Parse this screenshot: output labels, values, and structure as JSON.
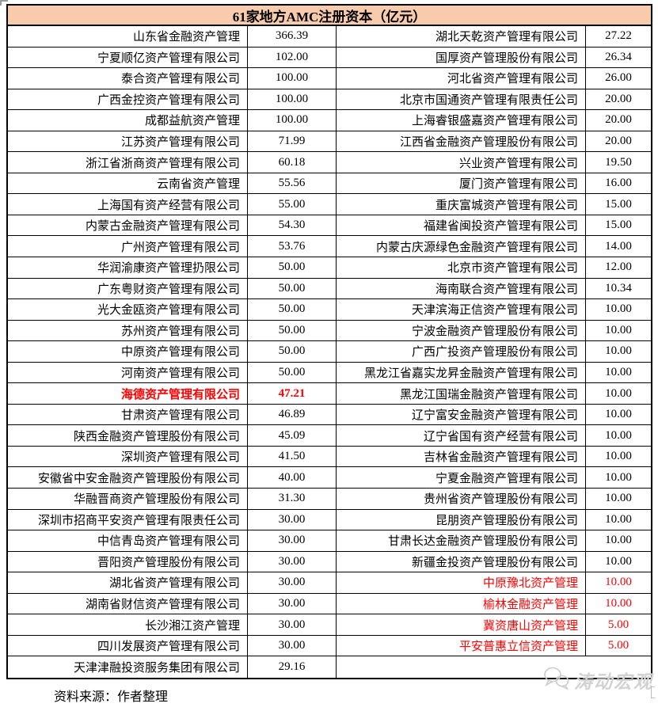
{
  "header": {
    "title": "61家地方AMC注册资本（亿元）"
  },
  "table": {
    "rows": [
      {
        "l": "山东省金融资产管理",
        "lv": "366.39",
        "r": "湖北天乾资产管理有限公司",
        "rv": "27.22"
      },
      {
        "l": "宁夏顺亿资产管理有限公司",
        "lv": "102.00",
        "r": "国厚资产管理股份有限公司",
        "rv": "26.34"
      },
      {
        "l": "泰合资产管理有限公司",
        "lv": "100.00",
        "r": "河北省资产管理有限公司",
        "rv": "26.00"
      },
      {
        "l": "广西金控资产管理有限公司",
        "lv": "100.00",
        "r": "北京市国通资产管理有限责任公司",
        "rv": "20.00"
      },
      {
        "l": "成都益航资产管理",
        "lv": "100.00",
        "r": "上海睿银盛嘉资产管理有限公司",
        "rv": "20.00"
      },
      {
        "l": "江苏资产管理有限公司",
        "lv": "71.99",
        "r": "江西省金融资产管理股份有限公司",
        "rv": "20.00"
      },
      {
        "l": "浙江省浙商资产管理有限公司",
        "lv": "60.18",
        "r": "兴业资产管理有限公司",
        "rv": "19.50"
      },
      {
        "l": "云南省资产管理",
        "lv": "55.56",
        "r": "厦门资产管理有限公司",
        "rv": "16.00"
      },
      {
        "l": "上海国有资产经营有限公司",
        "lv": "55.00",
        "r": "重庆富城资产管理有限公司",
        "rv": "15.00"
      },
      {
        "l": "内蒙古金融资产管理有限公司",
        "lv": "54.30",
        "r": "福建省闽投资产管理有限公司",
        "rv": "15.00"
      },
      {
        "l": "广州资产管理有限公司",
        "lv": "53.76",
        "r": "内蒙古庆源绿色金融资产管理有限公司",
        "rv": "14.00"
      },
      {
        "l": "华润渝康资产管理扔限公司",
        "lv": "50.00",
        "r": "北京市资产管理有限公司",
        "rv": "12.00"
      },
      {
        "l": "广东粤财资产管理有限公司",
        "lv": "50.00",
        "r": "海南联合资产管理有限公司",
        "rv": "10.34"
      },
      {
        "l": "光大金瓯资产管理有限公司",
        "lv": "50.00",
        "r": "天津滨海正信资产管理有限公司",
        "rv": "10.00"
      },
      {
        "l": "苏州资产管理有限公司",
        "lv": "50.00",
        "r": "宁波金融资产管理股份有限公司",
        "rv": "10.00"
      },
      {
        "l": "中原资产管理有限公司",
        "lv": "50.00",
        "r": "广西广投资产管理股份有限公司",
        "rv": "10.00"
      },
      {
        "l": "河南资产管理有限公司",
        "lv": "50.00",
        "r": "黑龙江省嘉实龙昇金融资产管理有限公司",
        "rv": "10.00"
      },
      {
        "l": "海德资产管理有限公司",
        "lv": "47.21",
        "l_red": true,
        "r": "黑龙江国瑞金融资产管理有限公司",
        "rv": "10.00"
      },
      {
        "l": "甘肃资产管理有限公司",
        "lv": "46.89",
        "r": "辽宁富安金融资产管理有限公司",
        "rv": "10.00"
      },
      {
        "l": "陕西金融资产管理股份有限公司",
        "lv": "45.09",
        "r": "辽宁省国有资产经营有限公司",
        "rv": "10.00"
      },
      {
        "l": "深圳资产管理有限公司",
        "lv": "41.50",
        "r": "吉林省金融资产管理有限公司",
        "rv": "10.00"
      },
      {
        "l": "安徽省中安金融资产管理股份有限公司",
        "lv": "40.00",
        "r": "宁夏金融资产管理有限公司",
        "rv": "10.00"
      },
      {
        "l": "华融晋商资产管理股份有限公司",
        "lv": "31.30",
        "r": "贵州省资产管理股份有限公司",
        "rv": "10.00"
      },
      {
        "l": "深圳市招商平安资产管理有限责任公司",
        "lv": "30.00",
        "r": "昆朋资产管理股份有限公司",
        "rv": "10.00"
      },
      {
        "l": "中信青岛资产管理有限公司",
        "lv": "30.00",
        "r": "甘肃长达金融资产管理股份有限公司",
        "rv": "10.00"
      },
      {
        "l": "晋阳资产管理股份有限公司",
        "lv": "30.00",
        "r": "新疆金投资产管理股份有限公司",
        "rv": "10.00"
      },
      {
        "l": "湖北省资产管理有限公司",
        "lv": "30.00",
        "r": "中原豫北资产管理",
        "rv": "10.00",
        "r_red": true
      },
      {
        "l": "湖南省财信资产管理有限公司",
        "lv": "30.00",
        "r": "榆林金融资产管理",
        "rv": "10.00",
        "r_red": true
      },
      {
        "l": "长沙湘江资产管理",
        "lv": "30.00",
        "r": "冀资唐山资产管理",
        "rv": "5.00",
        "r_red": true
      },
      {
        "l": "四川发展资产管理有限公司",
        "lv": "30.00",
        "r": "平安普惠立信资产管理",
        "rv": "5.00",
        "r_red": true
      },
      {
        "l": "天津津融投资服务集团有限公司",
        "lv": "29.16",
        "r": "",
        "rv": "",
        "r_merged": true
      }
    ]
  },
  "footer": {
    "source": "资料来源：作者整理"
  },
  "watermark": {
    "text": "涛动宏观",
    "icon": "wechat-bubbles-icon"
  },
  "colors": {
    "header_bg": "#F8CBAD",
    "highlight_red": "#FF0000",
    "border": "#000000",
    "watermark_gray": "#D2D2D2"
  }
}
